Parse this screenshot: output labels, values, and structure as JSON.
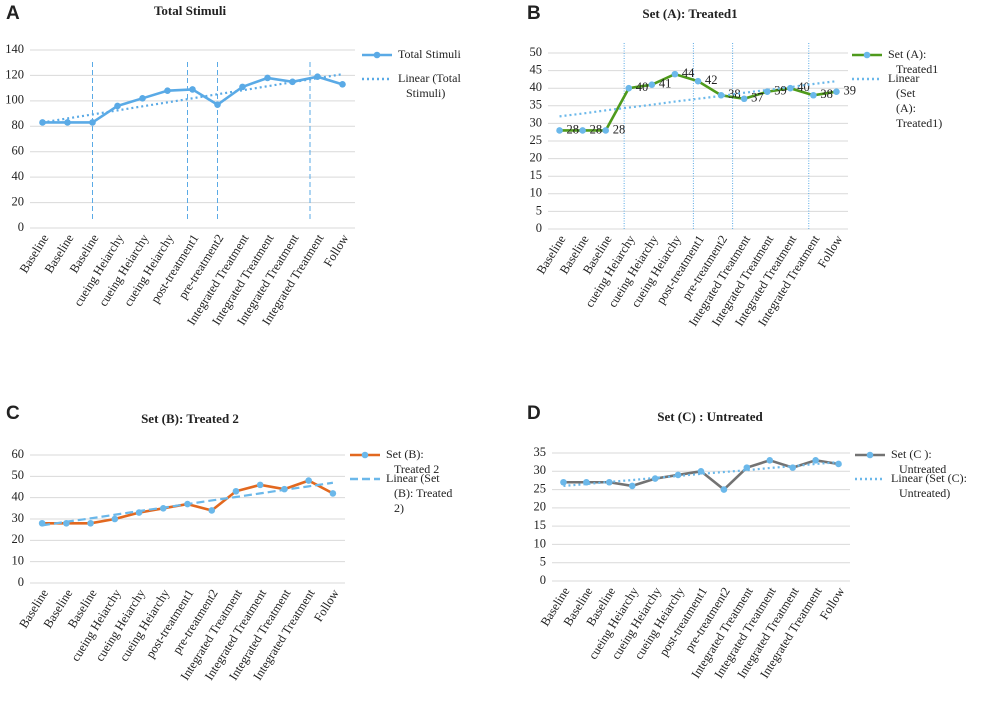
{
  "chart_data": [
    {
      "type": "line",
      "panel": "A",
      "title": "Total Stimuli",
      "categories": [
        "Baseline",
        "Baseline",
        "Baseline",
        "cueing Heiarchy",
        "cueing Heiarchy",
        "cueing Heiarchy",
        "post-treatment1",
        "pre-treatment2",
        "Integrated Treatment",
        "Integrated Treatment",
        "Integrated Treatment",
        "Integrated Treatment",
        "Follow"
      ],
      "series": [
        {
          "name": "Total Stimuli",
          "color": "#5aaae6",
          "marker_color": "#5aaae6",
          "values": [
            83,
            83,
            83,
            96,
            102,
            108,
            109,
            97,
            111,
            118,
            115,
            119,
            113
          ]
        },
        {
          "name": "Linear (Total Stimuli)",
          "color": "#5aaae6",
          "style": "dotted",
          "values": [
            83,
            86.2,
            89.3,
            92.5,
            95.7,
            98.8,
            102,
            105.2,
            108.3,
            111.5,
            114.7,
            117.8,
            121
          ]
        }
      ],
      "ylim": [
        0,
        140
      ],
      "yticks": [
        0,
        20,
        40,
        60,
        80,
        100,
        120,
        140
      ],
      "data_labels": false
    },
    {
      "type": "line",
      "panel": "B",
      "title": "Set (A): Treated1",
      "categories": [
        "Baseline",
        "Baseline",
        "Baseline",
        "cueing Heiarchy",
        "cueing Heiarchy",
        "cueing Heiarchy",
        "post-treatment1",
        "pre-treatment2",
        "Integrated Treatment",
        "Integrated Treatment",
        "Integrated Treatment",
        "Integrated Treatment",
        "Follow"
      ],
      "series": [
        {
          "name": "Set (A): Treated1",
          "color": "#4f9a1c",
          "marker_color": "#6bb8ea",
          "values": [
            28,
            28,
            28,
            40,
            41,
            44,
            42,
            38,
            37,
            39,
            40,
            38,
            39
          ]
        },
        {
          "name": "Linear (Set (A): Treated1)",
          "color": "#6bb8ea",
          "style": "dotted",
          "values": [
            32,
            32.8,
            33.7,
            34.5,
            35.3,
            36.2,
            37,
            37.8,
            38.7,
            39.5,
            40.3,
            41.2,
            42
          ]
        }
      ],
      "ylim": [
        0,
        50
      ],
      "yticks": [
        0,
        5,
        10,
        15,
        20,
        25,
        30,
        35,
        40,
        45,
        50
      ],
      "data_labels": true
    },
    {
      "type": "line",
      "panel": "C",
      "title": "Set (B): Treated 2",
      "categories": [
        "Baseline",
        "Baseline",
        "Baseline",
        "cueing Heiarchy",
        "cueing Heiarchy",
        "cueing Heiarchy",
        "post-treatment1",
        "pre-treatment2",
        "Integrated Treatment",
        "Integrated Treatment",
        "Integrated Treatment",
        "Integrated Treatment",
        "Follow"
      ],
      "series": [
        {
          "name": "Set (B): Treated 2",
          "color": "#e2681f",
          "marker_color": "#6bb8ea",
          "values": [
            28,
            28,
            28,
            30,
            33,
            35,
            37,
            34,
            43,
            46,
            44,
            48,
            42
          ]
        },
        {
          "name": "Linear (Set (B): Treated 2)",
          "color": "#6bb8ea",
          "style": "dashed",
          "values": [
            27,
            28.7,
            30.3,
            32,
            33.7,
            35.3,
            37,
            38.7,
            40.3,
            42,
            43.7,
            45.3,
            47
          ]
        }
      ],
      "ylim": [
        0,
        60
      ],
      "yticks": [
        0,
        10,
        20,
        30,
        40,
        50,
        60
      ],
      "data_labels": false
    },
    {
      "type": "line",
      "panel": "D",
      "title": "Set (C) : Untreated",
      "categories": [
        "Baseline",
        "Baseline",
        "Baseline",
        "cueing Heiarchy",
        "cueing Heiarchy",
        "cueing Heiarchy",
        "post-treatment1",
        "pre-treatment2",
        "Integrated Treatment",
        "Integrated Treatment",
        "Integrated Treatment",
        "Integrated Treatment",
        "Follow"
      ],
      "series": [
        {
          "name": "Set (C ): Untreated",
          "color": "#737373",
          "marker_color": "#6bb8ea",
          "values": [
            27,
            27,
            27,
            26,
            28,
            29,
            30,
            25,
            31,
            33,
            31,
            33,
            32
          ]
        },
        {
          "name": "Linear (Set (C): Untreated)",
          "color": "#6bb8ea",
          "style": "dotted",
          "values": [
            26,
            26.5,
            27.1,
            27.6,
            28.2,
            28.7,
            29.3,
            29.8,
            30.3,
            30.9,
            31.4,
            32,
            32.5
          ]
        }
      ],
      "ylim": [
        0,
        35
      ],
      "yticks": [
        0,
        5,
        10,
        15,
        20,
        25,
        30,
        35
      ],
      "data_labels": false
    }
  ]
}
